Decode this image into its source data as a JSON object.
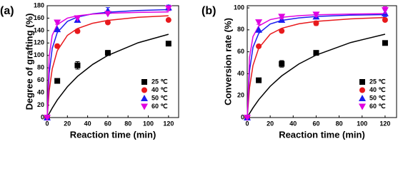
{
  "chart_data": [
    {
      "type": "scatter",
      "panel_label": "(a)",
      "x_label": "Reaction time (min)",
      "y_label": "Degree of grafting (%)",
      "xlim": [
        0,
        130
      ],
      "xticks": [
        0,
        20,
        40,
        60,
        80,
        100,
        120
      ],
      "ylim": [
        0,
        180
      ],
      "yticks": [
        0,
        20,
        40,
        60,
        80,
        100,
        120,
        140,
        160,
        180
      ],
      "x": [
        0,
        10,
        30,
        60,
        120
      ],
      "fit_x": [
        0,
        2,
        5,
        10,
        20,
        30,
        45,
        60,
        90,
        120
      ],
      "legend": "lower right",
      "series": [
        {
          "name": "25 ℃",
          "color": "#000000",
          "marker": "square",
          "values": [
            0,
            59,
            84,
            104,
            119
          ],
          "errors": [
            null,
            null,
            6,
            4,
            null
          ],
          "fit": [
            0,
            6.4,
            15.2,
            28.3,
            49.6,
            66.3,
            85.5,
            100.0,
            120.4,
            134.0
          ]
        },
        {
          "name": "40 ℃",
          "color": "#e8191c",
          "marker": "circle",
          "values": [
            0,
            115,
            139,
            153,
            157
          ],
          "errors": [
            null,
            3,
            3,
            null,
            null
          ],
          "fit": [
            0,
            43.0,
            78.2,
            107.5,
            132.3,
            143.3,
            151.8,
            156.4,
            161.3,
            163.8
          ]
        },
        {
          "name": "50 ℃",
          "color": "#1c1cf0",
          "marker": "triangle-up",
          "values": [
            0,
            142,
            157,
            172,
            177
          ],
          "errors": [
            null,
            null,
            4,
            5,
            4
          ],
          "fit": [
            0,
            71.2,
            111.3,
            136.9,
            154.8,
            161.8,
            166.9,
            169.5,
            172.3,
            173.7
          ]
        },
        {
          "name": "60 ℃",
          "color": "#e000e0",
          "marker": "triangle-down",
          "values": [
            0,
            153,
            160,
            167,
            176
          ],
          "errors": [
            null,
            3,
            null,
            null,
            4
          ],
          "fit": [
            0,
            98.3,
            132.3,
            149.6,
            160.0,
            163.8,
            166.5,
            167.8,
            169.2,
            169.9
          ]
        }
      ]
    },
    {
      "type": "scatter",
      "panel_label": "(b)",
      "x_label": "Reaction time (min)",
      "y_label": "Conversion rate (%)",
      "xlim": [
        0,
        130
      ],
      "xticks": [
        0,
        20,
        40,
        60,
        80,
        100,
        120
      ],
      "ylim": [
        0,
        102
      ],
      "yticks": [
        0,
        20,
        40,
        60,
        80,
        100
      ],
      "x": [
        0,
        10,
        30,
        60,
        120
      ],
      "fit_x": [
        0,
        2,
        5,
        10,
        20,
        30,
        45,
        60,
        90,
        120
      ],
      "legend": "lower right",
      "series": [
        {
          "name": "25 ℃",
          "color": "#000000",
          "marker": "square",
          "values": [
            0,
            34,
            49,
            59,
            68
          ],
          "errors": [
            null,
            null,
            3,
            null,
            null
          ],
          "fit": [
            0,
            3.7,
            8.8,
            16.3,
            28.5,
            38.0,
            48.9,
            57.0,
            68.4,
            76.0
          ]
        },
        {
          "name": "40 ℃",
          "color": "#e8191c",
          "marker": "circle",
          "values": [
            0,
            65,
            79,
            86,
            89
          ],
          "errors": [
            null,
            null,
            null,
            2,
            null
          ],
          "fit": [
            0,
            27.1,
            47.5,
            63.3,
            76.0,
            81.4,
            85.5,
            87.7,
            90.0,
            91.2
          ]
        },
        {
          "name": "50 ℃",
          "color": "#1c1cf0",
          "marker": "triangle-up",
          "values": [
            0,
            80,
            89,
            92,
            95
          ],
          "errors": [
            null,
            null,
            2,
            2,
            3
          ],
          "fit": [
            0,
            42.7,
            64.0,
            76.8,
            85.3,
            88.6,
            90.9,
            92.2,
            93.4,
            93.9
          ]
        },
        {
          "name": "60 ℃",
          "color": "#e000e0",
          "marker": "triangle-down",
          "values": [
            0,
            87,
            92,
            94,
            98
          ],
          "errors": [
            null,
            2,
            2,
            2,
            3
          ],
          "fit": [
            0,
            54.9,
            73.8,
            83.5,
            89.3,
            91.4,
            92.9,
            93.7,
            94.4,
            94.8
          ]
        }
      ]
    }
  ]
}
